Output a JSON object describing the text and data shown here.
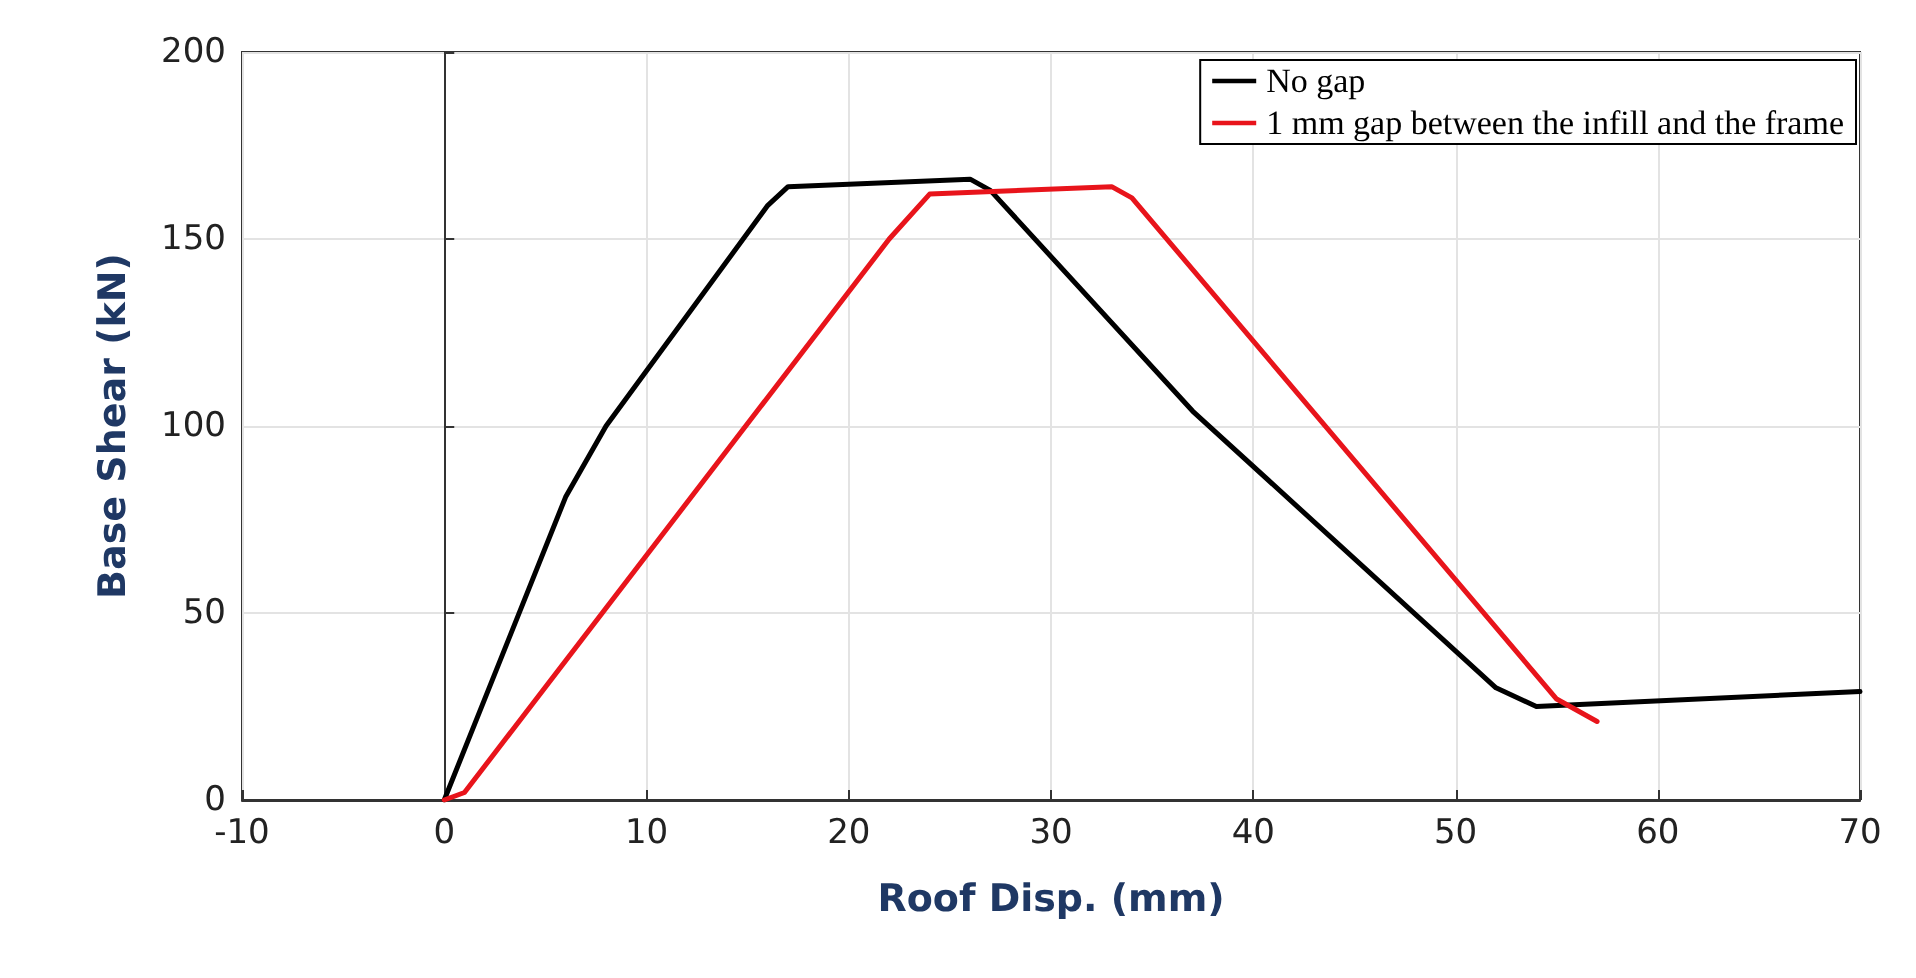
{
  "chart_data": {
    "type": "line",
    "xlabel": "Roof Disp. (mm)",
    "ylabel": "Base Shear (kN)",
    "xlim": [
      -10,
      70
    ],
    "xticks": [
      -10,
      0,
      10,
      20,
      30,
      40,
      50,
      60,
      70
    ],
    "ylim": [
      0,
      200
    ],
    "yticks": [
      0,
      50,
      100,
      150,
      200
    ],
    "grid": true,
    "legend": "top right",
    "marker": "none",
    "line_style": "solid",
    "series": [
      {
        "name": "No gap",
        "color": "#000000",
        "x": [
          0,
          6,
          8,
          16,
          17,
          26,
          27,
          37,
          52,
          54,
          70
        ],
        "values": [
          0,
          81,
          100,
          159,
          164,
          166,
          163,
          104,
          30,
          25,
          29
        ]
      },
      {
        "name": "1 mm gap between the infill and the frame",
        "color": "#e8141b",
        "x": [
          0,
          1,
          22,
          24,
          33,
          34,
          55,
          57
        ],
        "values": [
          0,
          2,
          150,
          162,
          164,
          161,
          27,
          21
        ]
      }
    ]
  }
}
